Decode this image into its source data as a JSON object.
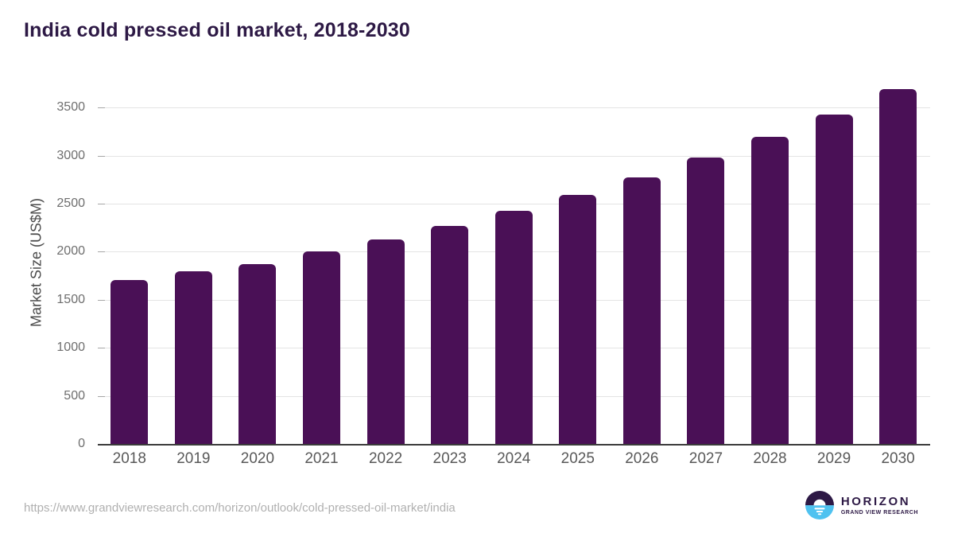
{
  "header": {
    "title": "India cold pressed oil market, 2018-2030"
  },
  "chart_data": {
    "type": "bar",
    "title": "India cold pressed oil market, 2018-2030",
    "categories": [
      "2018",
      "2019",
      "2020",
      "2021",
      "2022",
      "2023",
      "2024",
      "2025",
      "2026",
      "2027",
      "2028",
      "2029",
      "2030"
    ],
    "values": [
      1705,
      1800,
      1870,
      2000,
      2130,
      2270,
      2425,
      2590,
      2775,
      2980,
      3195,
      3425,
      3690
    ],
    "xlabel": "",
    "ylabel": "Market Size (US$M)",
    "ylim": [
      0,
      3700
    ],
    "yticks": [
      0,
      500,
      1000,
      1500,
      2000,
      2500,
      3000,
      3500
    ],
    "grid": true,
    "legend": "none",
    "bar_color": "#4a1056"
  },
  "footer": {
    "source_url": "https://www.grandviewresearch.com/horizon/outlook/cold-pressed-oil-market/india",
    "logo": {
      "brand": "HORIZON",
      "tagline": "GRAND VIEW RESEARCH"
    }
  },
  "colors": {
    "title": "#2d1945",
    "bar": "#4a1056",
    "gridline": "#e4e4e4",
    "tick": "#a6a6a6",
    "axis_line": "#3b3b3b",
    "x_label": "#595959",
    "y_label": "#6e6e6e",
    "axis_title": "#4a4a4a",
    "url": "#b0b0b0",
    "logo_purple": "#2d1945",
    "logo_blue": "#4fc2f0"
  }
}
